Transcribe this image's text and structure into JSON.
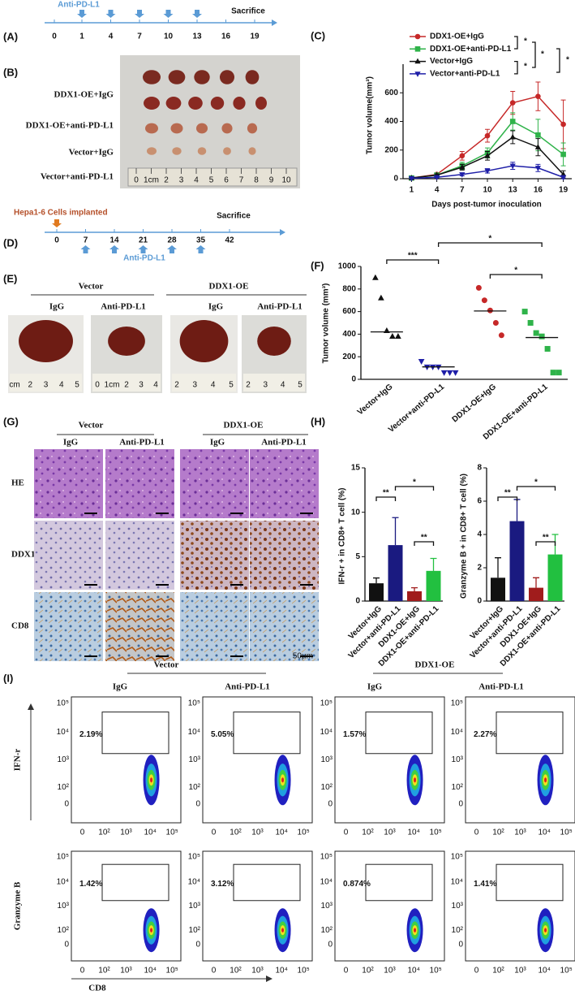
{
  "panel_labels": [
    "(A)",
    "(B)",
    "(C)",
    "(D)",
    "(E)",
    "(F)",
    "(G)",
    "(H)",
    "(I)"
  ],
  "panel_a": {
    "treatment": "Anti-PD-L1",
    "end": "Sacrifice",
    "days": [
      0,
      1,
      4,
      7,
      10,
      13,
      16,
      19
    ]
  },
  "panel_b": {
    "rows": [
      "DDX1-OE+IgG",
      "DDX1-OE+anti-PD-L1",
      "Vector+IgG",
      "Vector+anti-PD-L1"
    ],
    "ruler": [
      "0",
      "1cm",
      "2",
      "3",
      "4",
      "5",
      "6",
      "7",
      "8",
      "9",
      "10"
    ]
  },
  "panel_d": {
    "implant": "Hepa1-6 Cells implanted",
    "treatment": "Anti-PD-L1",
    "end": "Sacrifice",
    "days": [
      0,
      7,
      14,
      21,
      28,
      35,
      42
    ]
  },
  "panel_e": {
    "groups": [
      "Vector",
      "DDX1-OE"
    ],
    "conditions": [
      "IgG",
      "Anti-PD-L1",
      "IgG",
      "Anti-PD-L1"
    ],
    "rulers": [
      [
        "cm",
        "2",
        "3",
        "4",
        "5"
      ],
      [
        "0",
        "1cm",
        "2",
        "3",
        "4"
      ],
      [
        "2",
        "3",
        "4",
        "5"
      ],
      [
        "2",
        "3",
        "4",
        "5"
      ]
    ]
  },
  "panel_g": {
    "groups": [
      "Vector",
      "DDX1-OE"
    ],
    "conditions": [
      "IgG",
      "Anti-PD-L1",
      "IgG",
      "Anti-PD-L1"
    ],
    "rows": [
      "HE",
      "DDX1",
      "CD8"
    ],
    "scale": "50μm"
  },
  "panel_i": {
    "groups": [
      "Vector",
      "DDX1-OE"
    ],
    "conditions": [
      "IgG",
      "Anti-PD-L1",
      "IgG",
      "Anti-PD-L1"
    ],
    "rows": [
      "IFN-r",
      "Granzyme B"
    ],
    "x_label": "CD8",
    "gates": [
      [
        "2.19%",
        "5.05%",
        "1.57%",
        "2.27%"
      ],
      [
        "1.42%",
        "3.12%",
        "0.874%",
        "1.41%"
      ]
    ],
    "y_ticks": [
      "10⁵",
      "10⁴",
      "10³",
      "10²",
      "0"
    ],
    "x_ticks": [
      "0",
      "10²",
      "10³",
      "10⁴",
      "10⁵"
    ]
  },
  "chart_data": [
    {
      "type": "line",
      "y_label": "Tumor volume(mm³)",
      "x_label": "Days post-tumor inoculation",
      "x": [
        1,
        4,
        7,
        10,
        13,
        16,
        19
      ],
      "xlim": [
        0,
        20
      ],
      "xticks": [
        1,
        4,
        7,
        10,
        13,
        16,
        19
      ],
      "ylim": [
        0,
        800
      ],
      "yticks": [
        0,
        200,
        400,
        600
      ],
      "series": [
        {
          "name": "DDX1-OE+IgG",
          "color": "#c62828",
          "marker": "circle",
          "values": [
            5,
            30,
            160,
            300,
            530,
            575,
            380
          ],
          "errors": [
            5,
            10,
            30,
            45,
            80,
            100,
            170
          ]
        },
        {
          "name": "DDX1-OE+anti-PD-L1",
          "color": "#2fb34a",
          "marker": "square",
          "values": [
            5,
            25,
            90,
            180,
            400,
            305,
            170
          ],
          "errors": [
            3,
            8,
            25,
            35,
            60,
            110,
            80
          ]
        },
        {
          "name": "Vector+IgG",
          "color": "#111111",
          "marker": "triangle",
          "values": [
            5,
            25,
            80,
            160,
            290,
            220,
            30
          ],
          "errors": [
            3,
            8,
            20,
            30,
            45,
            60,
            25
          ]
        },
        {
          "name": "Vector+anti-PD-L1",
          "color": "#1f1fa8",
          "marker": "triangle-down",
          "values": [
            3,
            10,
            30,
            55,
            90,
            75,
            10
          ],
          "errors": [
            2,
            4,
            10,
            15,
            25,
            25,
            10
          ]
        }
      ],
      "annotations": [
        "*",
        "*",
        "*",
        "*"
      ]
    },
    {
      "type": "dot",
      "y_label": "Tumor volume (mm³)",
      "categories": [
        "Vector+IgG",
        "Vector+anti-PD-L1",
        "DDX1-OE+IgG",
        "DDX1-OE+anti-PD-L1"
      ],
      "points": [
        [
          900,
          720,
          430,
          380,
          380
        ],
        [
          160,
          110,
          110,
          110,
          60,
          60,
          60
        ],
        [
          810,
          700,
          610,
          500,
          390
        ],
        [
          600,
          500,
          410,
          380,
          270,
          60,
          60
        ]
      ],
      "medians": [
        420,
        110,
        605,
        370
      ],
      "colors": [
        "#111111",
        "#1f1fa8",
        "#c62828",
        "#2fb34a"
      ],
      "markers": [
        "triangle",
        "triangle-down",
        "circle",
        "square"
      ],
      "ylim": [
        0,
        1000
      ],
      "yticks": [
        0,
        200,
        400,
        600,
        800,
        1000
      ],
      "annotations": [
        "***",
        "*",
        "*"
      ]
    },
    {
      "type": "bar",
      "y_label": "IFN-r + in CD8+ T cell (%)",
      "categories": [
        "Vector+IgG",
        "Vector+anti-PD-L1",
        "DDX1-OE+IgG",
        "DDX1-OE+anti-PD-L1"
      ],
      "values": [
        2,
        6.3,
        1.1,
        3.4
      ],
      "errors": [
        0.6,
        3.1,
        0.4,
        1.4
      ],
      "colors": [
        "#111111",
        "#1a1a80",
        "#a01c1c",
        "#22c040"
      ],
      "ylim": [
        0,
        15
      ],
      "yticks": [
        0,
        5,
        10,
        15
      ],
      "annotations": [
        "**",
        "*",
        "**"
      ]
    },
    {
      "type": "bar",
      "y_label": "Granzyme B + in CD8+ T cell (%)",
      "categories": [
        "Vector+IgG",
        "Vector+anti-PD-L1",
        "DDX1-OE+IgG",
        "DDX1-OE+anti-PD-L1"
      ],
      "values": [
        1.4,
        4.8,
        0.8,
        2.8
      ],
      "errors": [
        1.2,
        1.3,
        0.6,
        1.2
      ],
      "colors": [
        "#111111",
        "#1a1a80",
        "#a01c1c",
        "#22c040"
      ],
      "ylim": [
        0,
        8
      ],
      "yticks": [
        0,
        2,
        4,
        6,
        8
      ],
      "annotations": [
        "**",
        "*",
        "**"
      ]
    }
  ]
}
